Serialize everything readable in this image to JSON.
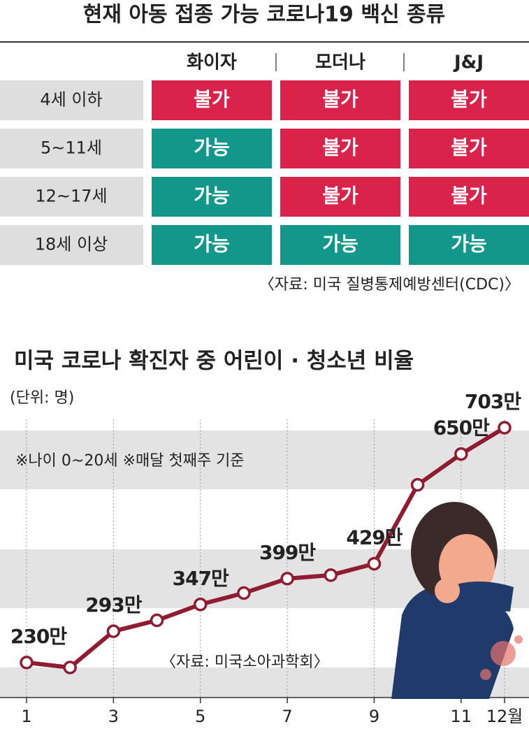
{
  "table_title": "현재 아동 접종 가능 코로나19 백신 종류",
  "table": {
    "columns": [
      "화이자",
      "모더나",
      "J&J"
    ],
    "rows": [
      {
        "label": "4세 이하",
        "cells": [
          {
            "text": "불가",
            "color": "#d9234b"
          },
          {
            "text": "불가",
            "color": "#d9234b"
          },
          {
            "text": "불가",
            "color": "#d9234b"
          }
        ]
      },
      {
        "label": "5~11세",
        "cells": [
          {
            "text": "가능",
            "color": "#14978b"
          },
          {
            "text": "불가",
            "color": "#d9234b"
          },
          {
            "text": "불가",
            "color": "#d9234b"
          }
        ]
      },
      {
        "label": "12~17세",
        "cells": [
          {
            "text": "가능",
            "color": "#14978b"
          },
          {
            "text": "불가",
            "color": "#d9234b"
          },
          {
            "text": "불가",
            "color": "#d9234b"
          }
        ]
      },
      {
        "label": "18세 이상",
        "cells": [
          {
            "text": "가능",
            "color": "#14978b"
          },
          {
            "text": "가능",
            "color": "#14978b"
          },
          {
            "text": "가능",
            "color": "#14978b"
          }
        ]
      }
    ],
    "source": "〈자료: 미국 질병통제예방센터(CDC)〉"
  },
  "chart_data": {
    "type": "line",
    "title": "미국 코로나 확진자 중 어린이 · 청소년 비율",
    "subtitle": "(단위: 명)",
    "annotation": "※나이 0~20세  ※매달 첫째주 기준",
    "source": "〈자료: 미국소아과학회〉",
    "x": [
      1,
      2,
      3,
      4,
      5,
      6,
      7,
      8,
      9,
      10,
      11,
      12
    ],
    "xlim": [
      1,
      12
    ],
    "xticks": [
      1,
      3,
      5,
      7,
      9,
      11,
      {
        "value": 12,
        "label": "12월"
      }
    ],
    "series": [
      {
        "name": null,
        "color": "#8f1c30",
        "values": [
          230,
          220,
          293,
          315,
          347,
          370,
          399,
          406,
          429,
          588,
          650,
          703
        ],
        "value_labels": [
          "230만",
          null,
          "293만",
          null,
          "347만",
          null,
          "399만",
          null,
          "429만",
          null,
          "650만",
          "703만"
        ]
      }
    ]
  }
}
